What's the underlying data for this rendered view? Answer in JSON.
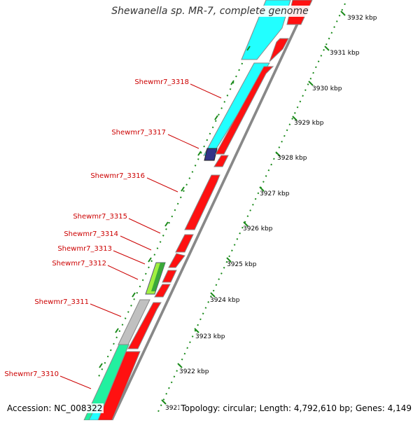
{
  "title": "Shewanella sp. MR-7, complete genome",
  "footer": {
    "accession": "Accession: NC_008322",
    "topology": "Topology: circular; Length: 4,792,610 bp; Genes: 4,149"
  },
  "ruler": {
    "unit": "kbp",
    "ticks": [
      "3932 kbp",
      "3931 kbp",
      "3930 kbp",
      "3929 kbp",
      "3928 kbp",
      "3927 kbp",
      "3926 kbp",
      "3925 kbp",
      "3924 kbp",
      "3923 kbp",
      "3922 kbp",
      "3921"
    ]
  },
  "genes": [
    {
      "label": "Shewmr7_3318"
    },
    {
      "label": "Shewmr7_3317"
    },
    {
      "label": "Shewmr7_3316"
    },
    {
      "label": "Shewmr7_3315"
    },
    {
      "label": "Shewmr7_3314"
    },
    {
      "label": "Shewmr7_3313"
    },
    {
      "label": "Shewmr7_3312"
    },
    {
      "label": "Shewmr7_3311"
    },
    {
      "label": "Shewmr7_3310"
    }
  ],
  "colors": {
    "cyan_feature": "#22ffff",
    "red_feature": "#ff1111",
    "gray_feature": "#c0c0c0",
    "green_feature": "#22f0a0",
    "lime_feature": "#a0f040",
    "navy_feature": "#333388",
    "tick_green": "#1a8a1a",
    "label_red": "#cc0000"
  }
}
